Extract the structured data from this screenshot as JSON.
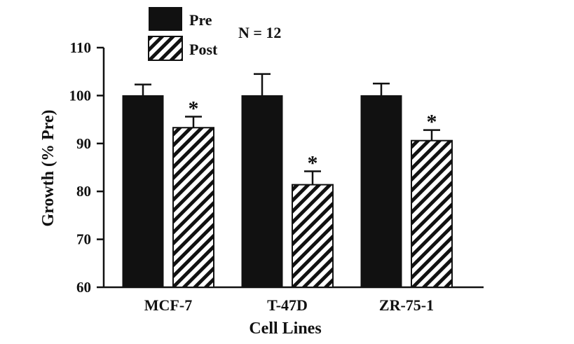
{
  "chart_data": {
    "type": "bar",
    "categories": [
      "MCF-7",
      "T-47D",
      "ZR-75-1"
    ],
    "series": [
      {
        "name": "Pre",
        "values": [
          100,
          100,
          100
        ],
        "errors": [
          2.3,
          4.5,
          2.5
        ],
        "fill": "solid"
      },
      {
        "name": "Post",
        "values": [
          93.3,
          81.4,
          90.6
        ],
        "errors": [
          2.3,
          2.8,
          2.2
        ],
        "fill": "hatched",
        "significance": [
          "*",
          "*",
          "*"
        ]
      }
    ],
    "title": "",
    "annotation": "N = 12",
    "xlabel": "Cell Lines",
    "ylabel": "Growth (% Pre)",
    "ylim": [
      60,
      110
    ],
    "yticks": [
      60,
      70,
      80,
      90,
      100,
      110
    ],
    "grid": false,
    "legend": "top-left",
    "colors": {
      "pre": "#111111",
      "post_stripe": "#111111",
      "post_bg": "#ffffff",
      "axis": "#111111"
    }
  }
}
